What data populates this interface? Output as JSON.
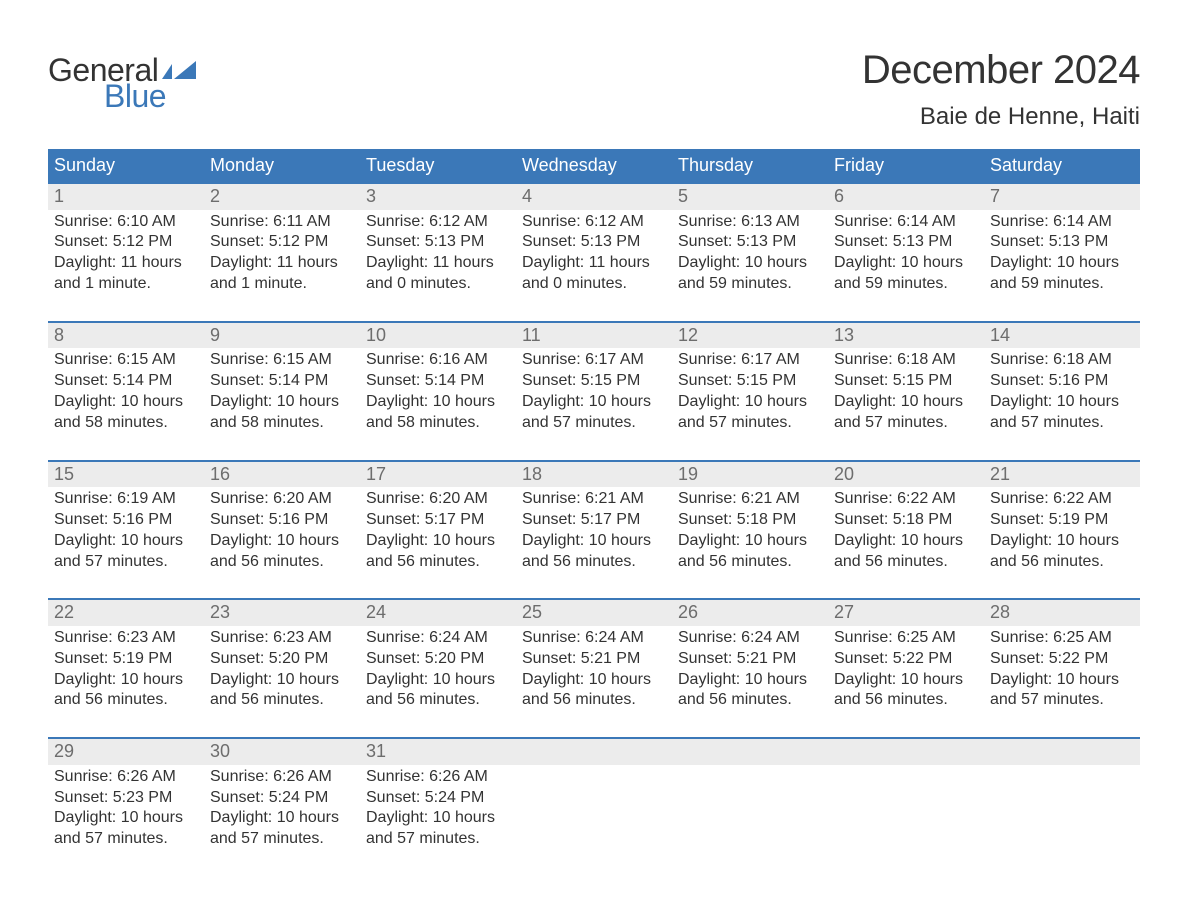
{
  "brand": {
    "word1": "General",
    "word2": "Blue"
  },
  "header": {
    "title": "December 2024",
    "location": "Baie de Henne, Haiti"
  },
  "colors": {
    "brand_blue": "#3b78b8",
    "header_bg": "#3b78b8",
    "header_text": "#ffffff",
    "daynum_bg": "#ececec",
    "daynum_text": "#6d6d6d",
    "body_text": "#333333",
    "page_bg": "#ffffff",
    "week_divider": "#3b78b8"
  },
  "typography": {
    "title_fontsize_pt": 30,
    "location_fontsize_pt": 18,
    "weekday_fontsize_pt": 14,
    "daynum_fontsize_pt": 14,
    "body_fontsize_pt": 12
  },
  "layout": {
    "columns": 7,
    "rows": 5,
    "first_weekday": "Sunday"
  },
  "weekdays": [
    "Sunday",
    "Monday",
    "Tuesday",
    "Wednesday",
    "Thursday",
    "Friday",
    "Saturday"
  ],
  "days": [
    {
      "n": 1,
      "sunrise": "6:10 AM",
      "sunset": "5:12 PM",
      "daylight": "11 hours and 1 minute."
    },
    {
      "n": 2,
      "sunrise": "6:11 AM",
      "sunset": "5:12 PM",
      "daylight": "11 hours and 1 minute."
    },
    {
      "n": 3,
      "sunrise": "6:12 AM",
      "sunset": "5:13 PM",
      "daylight": "11 hours and 0 minutes."
    },
    {
      "n": 4,
      "sunrise": "6:12 AM",
      "sunset": "5:13 PM",
      "daylight": "11 hours and 0 minutes."
    },
    {
      "n": 5,
      "sunrise": "6:13 AM",
      "sunset": "5:13 PM",
      "daylight": "10 hours and 59 minutes."
    },
    {
      "n": 6,
      "sunrise": "6:14 AM",
      "sunset": "5:13 PM",
      "daylight": "10 hours and 59 minutes."
    },
    {
      "n": 7,
      "sunrise": "6:14 AM",
      "sunset": "5:13 PM",
      "daylight": "10 hours and 59 minutes."
    },
    {
      "n": 8,
      "sunrise": "6:15 AM",
      "sunset": "5:14 PM",
      "daylight": "10 hours and 58 minutes."
    },
    {
      "n": 9,
      "sunrise": "6:15 AM",
      "sunset": "5:14 PM",
      "daylight": "10 hours and 58 minutes."
    },
    {
      "n": 10,
      "sunrise": "6:16 AM",
      "sunset": "5:14 PM",
      "daylight": "10 hours and 58 minutes."
    },
    {
      "n": 11,
      "sunrise": "6:17 AM",
      "sunset": "5:15 PM",
      "daylight": "10 hours and 57 minutes."
    },
    {
      "n": 12,
      "sunrise": "6:17 AM",
      "sunset": "5:15 PM",
      "daylight": "10 hours and 57 minutes."
    },
    {
      "n": 13,
      "sunrise": "6:18 AM",
      "sunset": "5:15 PM",
      "daylight": "10 hours and 57 minutes."
    },
    {
      "n": 14,
      "sunrise": "6:18 AM",
      "sunset": "5:16 PM",
      "daylight": "10 hours and 57 minutes."
    },
    {
      "n": 15,
      "sunrise": "6:19 AM",
      "sunset": "5:16 PM",
      "daylight": "10 hours and 57 minutes."
    },
    {
      "n": 16,
      "sunrise": "6:20 AM",
      "sunset": "5:16 PM",
      "daylight": "10 hours and 56 minutes."
    },
    {
      "n": 17,
      "sunrise": "6:20 AM",
      "sunset": "5:17 PM",
      "daylight": "10 hours and 56 minutes."
    },
    {
      "n": 18,
      "sunrise": "6:21 AM",
      "sunset": "5:17 PM",
      "daylight": "10 hours and 56 minutes."
    },
    {
      "n": 19,
      "sunrise": "6:21 AM",
      "sunset": "5:18 PM",
      "daylight": "10 hours and 56 minutes."
    },
    {
      "n": 20,
      "sunrise": "6:22 AM",
      "sunset": "5:18 PM",
      "daylight": "10 hours and 56 minutes."
    },
    {
      "n": 21,
      "sunrise": "6:22 AM",
      "sunset": "5:19 PM",
      "daylight": "10 hours and 56 minutes."
    },
    {
      "n": 22,
      "sunrise": "6:23 AM",
      "sunset": "5:19 PM",
      "daylight": "10 hours and 56 minutes."
    },
    {
      "n": 23,
      "sunrise": "6:23 AM",
      "sunset": "5:20 PM",
      "daylight": "10 hours and 56 minutes."
    },
    {
      "n": 24,
      "sunrise": "6:24 AM",
      "sunset": "5:20 PM",
      "daylight": "10 hours and 56 minutes."
    },
    {
      "n": 25,
      "sunrise": "6:24 AM",
      "sunset": "5:21 PM",
      "daylight": "10 hours and 56 minutes."
    },
    {
      "n": 26,
      "sunrise": "6:24 AM",
      "sunset": "5:21 PM",
      "daylight": "10 hours and 56 minutes."
    },
    {
      "n": 27,
      "sunrise": "6:25 AM",
      "sunset": "5:22 PM",
      "daylight": "10 hours and 56 minutes."
    },
    {
      "n": 28,
      "sunrise": "6:25 AM",
      "sunset": "5:22 PM",
      "daylight": "10 hours and 57 minutes."
    },
    {
      "n": 29,
      "sunrise": "6:26 AM",
      "sunset": "5:23 PM",
      "daylight": "10 hours and 57 minutes."
    },
    {
      "n": 30,
      "sunrise": "6:26 AM",
      "sunset": "5:24 PM",
      "daylight": "10 hours and 57 minutes."
    },
    {
      "n": 31,
      "sunrise": "6:26 AM",
      "sunset": "5:24 PM",
      "daylight": "10 hours and 57 minutes."
    }
  ],
  "labels": {
    "sunrise": "Sunrise:",
    "sunset": "Sunset:",
    "daylight": "Daylight:"
  }
}
